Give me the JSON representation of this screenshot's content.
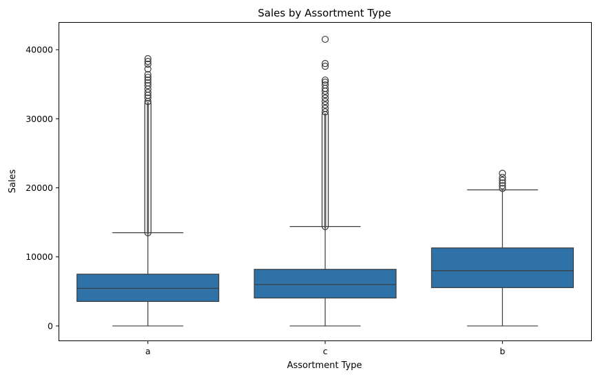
{
  "chart_data": {
    "type": "box",
    "title": "Sales by Assortment Type",
    "xlabel": "Assortment Type",
    "ylabel": "Sales",
    "ylim": [
      -2100,
      43900
    ],
    "yticks": [
      0,
      10000,
      20000,
      30000,
      40000
    ],
    "categories": [
      "a",
      "c",
      "b"
    ],
    "box_color": "#2e72a8",
    "edge_color": "#3a3a3a",
    "boxes": [
      {
        "category": "a",
        "whisker_low": 0,
        "q1": 3550,
        "median": 5450,
        "q3": 7500,
        "whisker_high": 13500,
        "outlier_band": [
          13500,
          32200
        ],
        "outliers": [
          32500,
          33000,
          33400,
          33800,
          34300,
          34800,
          35200,
          35600,
          36000,
          36400,
          37200,
          37900,
          38300,
          38700
        ]
      },
      {
        "category": "c",
        "whisker_low": 0,
        "q1": 4050,
        "median": 6000,
        "q3": 8200,
        "whisker_high": 14400,
        "outlier_band": [
          14400,
          30600
        ],
        "outliers": [
          31000,
          31500,
          32000,
          32500,
          33000,
          33500,
          34000,
          34400,
          34900,
          35300,
          35600,
          37600,
          38000,
          41500
        ]
      },
      {
        "category": "b",
        "whisker_low": 0,
        "q1": 5550,
        "median": 8000,
        "q3": 11300,
        "whisker_high": 19700,
        "outlier_band": [],
        "outliers": [
          19900,
          20300,
          20700,
          21100,
          21500,
          22100
        ]
      }
    ]
  }
}
